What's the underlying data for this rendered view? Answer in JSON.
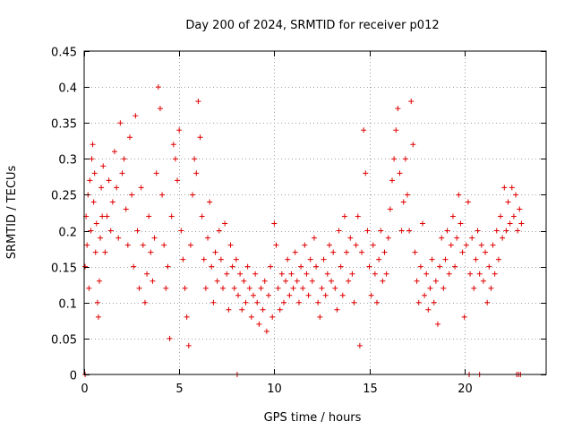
{
  "chart_data": {
    "type": "scatter",
    "title": "Day 200 of 2024, SRMTID for receiver p012",
    "xlabel": "GPS time / hours",
    "ylabel": "SRMTID / TECUs",
    "xlim": [
      0,
      24.3
    ],
    "ylim": [
      0,
      0.45
    ],
    "grid": true,
    "marker": "+",
    "color": "#e00000",
    "x_ticks": [
      0,
      5,
      10,
      15,
      20
    ],
    "x_tick_labels": [
      "0",
      "5",
      "10",
      "15",
      "20"
    ],
    "y_ticks": [
      0,
      0.05,
      0.1,
      0.15,
      0.2,
      0.25,
      0.3,
      0.35,
      0.4,
      0.45
    ],
    "y_tick_labels": [
      "0",
      "0.05",
      "0.1",
      "0.15",
      "0.2",
      "0.25",
      "0.3",
      "0.35",
      "0.4",
      "0.45"
    ],
    "series": [
      {
        "name": "p012",
        "points": [
          [
            0.05,
            0.15
          ],
          [
            0.1,
            0.22
          ],
          [
            0.15,
            0.18
          ],
          [
            0.2,
            0.25
          ],
          [
            0.25,
            0.12
          ],
          [
            0.3,
            0.27
          ],
          [
            0.35,
            0.2
          ],
          [
            0.4,
            0.3
          ],
          [
            0.45,
            0.32
          ],
          [
            0.5,
            0.24
          ],
          [
            0.55,
            0.28
          ],
          [
            0.6,
            0.17
          ],
          [
            0.65,
            0.21
          ],
          [
            0.7,
            0.1
          ],
          [
            0.75,
            0.08
          ],
          [
            0.8,
            0.13
          ],
          [
            0.85,
            0.19
          ],
          [
            0.9,
            0.26
          ],
          [
            0.95,
            0.22
          ],
          [
            1.0,
            0.29
          ],
          [
            1.1,
            0.17
          ],
          [
            1.2,
            0.22
          ],
          [
            1.3,
            0.27
          ],
          [
            1.4,
            0.2
          ],
          [
            1.5,
            0.24
          ],
          [
            1.6,
            0.31
          ],
          [
            1.7,
            0.26
          ],
          [
            1.8,
            0.19
          ],
          [
            1.9,
            0.35
          ],
          [
            2.0,
            0.28
          ],
          [
            2.1,
            0.3
          ],
          [
            2.2,
            0.23
          ],
          [
            2.3,
            0.18
          ],
          [
            2.4,
            0.33
          ],
          [
            2.5,
            0.25
          ],
          [
            2.6,
            0.15
          ],
          [
            2.7,
            0.36
          ],
          [
            2.8,
            0.2
          ],
          [
            2.9,
            0.12
          ],
          [
            3.0,
            0.26
          ],
          [
            3.1,
            0.18
          ],
          [
            3.2,
            0.1
          ],
          [
            3.3,
            0.14
          ],
          [
            3.4,
            0.22
          ],
          [
            3.5,
            0.17
          ],
          [
            3.6,
            0.13
          ],
          [
            3.7,
            0.19
          ],
          [
            3.8,
            0.28
          ],
          [
            3.9,
            0.4
          ],
          [
            4.0,
            0.37
          ],
          [
            4.1,
            0.25
          ],
          [
            4.2,
            0.18
          ],
          [
            4.3,
            0.12
          ],
          [
            4.4,
            0.15
          ],
          [
            4.5,
            0.05
          ],
          [
            4.6,
            0.22
          ],
          [
            4.7,
            0.32
          ],
          [
            4.8,
            0.3
          ],
          [
            4.9,
            0.27
          ],
          [
            5.0,
            0.34
          ],
          [
            5.1,
            0.2
          ],
          [
            5.2,
            0.16
          ],
          [
            5.3,
            0.12
          ],
          [
            5.4,
            0.08
          ],
          [
            5.5,
            0.04
          ],
          [
            5.6,
            0.18
          ],
          [
            5.7,
            0.25
          ],
          [
            5.8,
            0.3
          ],
          [
            5.9,
            0.28
          ],
          [
            6.0,
            0.38
          ],
          [
            6.1,
            0.33
          ],
          [
            6.2,
            0.22
          ],
          [
            6.3,
            0.16
          ],
          [
            6.4,
            0.12
          ],
          [
            6.5,
            0.19
          ],
          [
            6.6,
            0.24
          ],
          [
            6.7,
            0.15
          ],
          [
            6.8,
            0.1
          ],
          [
            6.9,
            0.17
          ],
          [
            7.0,
            0.13
          ],
          [
            7.1,
            0.2
          ],
          [
            7.2,
            0.16
          ],
          [
            7.3,
            0.12
          ],
          [
            7.4,
            0.21
          ],
          [
            7.5,
            0.14
          ],
          [
            7.6,
            0.09
          ],
          [
            7.7,
            0.18
          ],
          [
            7.8,
            0.15
          ],
          [
            7.9,
            0.12
          ],
          [
            8.0,
            0.16
          ],
          [
            8.1,
            0.11
          ],
          [
            8.2,
            0.14
          ],
          [
            8.3,
            0.09
          ],
          [
            8.4,
            0.13
          ],
          [
            8.5,
            0.1
          ],
          [
            8.6,
            0.15
          ],
          [
            8.7,
            0.12
          ],
          [
            8.8,
            0.08
          ],
          [
            8.9,
            0.11
          ],
          [
            9.0,
            0.14
          ],
          [
            9.1,
            0.1
          ],
          [
            9.2,
            0.07
          ],
          [
            9.3,
            0.12
          ],
          [
            9.4,
            0.09
          ],
          [
            9.5,
            0.13
          ],
          [
            9.6,
            0.06
          ],
          [
            9.7,
            0.11
          ],
          [
            9.8,
            0.15
          ],
          [
            9.9,
            0.08
          ],
          [
            10.0,
            0.21
          ],
          [
            10.1,
            0.18
          ],
          [
            10.2,
            0.12
          ],
          [
            10.3,
            0.09
          ],
          [
            10.4,
            0.14
          ],
          [
            10.5,
            0.1
          ],
          [
            10.6,
            0.13
          ],
          [
            10.7,
            0.16
          ],
          [
            10.8,
            0.11
          ],
          [
            10.9,
            0.14
          ],
          [
            11.0,
            0.12
          ],
          [
            11.1,
            0.17
          ],
          [
            11.2,
            0.13
          ],
          [
            11.3,
            0.1
          ],
          [
            11.4,
            0.15
          ],
          [
            11.5,
            0.12
          ],
          [
            11.6,
            0.18
          ],
          [
            11.7,
            0.14
          ],
          [
            11.8,
            0.11
          ],
          [
            11.9,
            0.16
          ],
          [
            12.0,
            0.13
          ],
          [
            12.1,
            0.19
          ],
          [
            12.2,
            0.15
          ],
          [
            12.3,
            0.1
          ],
          [
            12.4,
            0.08
          ],
          [
            12.5,
            0.12
          ],
          [
            12.6,
            0.16
          ],
          [
            12.7,
            0.11
          ],
          [
            12.8,
            0.14
          ],
          [
            12.9,
            0.18
          ],
          [
            13.0,
            0.13
          ],
          [
            13.1,
            0.17
          ],
          [
            13.2,
            0.12
          ],
          [
            13.3,
            0.09
          ],
          [
            13.4,
            0.2
          ],
          [
            13.5,
            0.15
          ],
          [
            13.6,
            0.11
          ],
          [
            13.7,
            0.22
          ],
          [
            13.8,
            0.17
          ],
          [
            13.9,
            0.13
          ],
          [
            14.0,
            0.19
          ],
          [
            14.1,
            0.14
          ],
          [
            14.2,
            0.1
          ],
          [
            14.3,
            0.18
          ],
          [
            14.4,
            0.22
          ],
          [
            14.5,
            0.04
          ],
          [
            14.6,
            0.17
          ],
          [
            14.7,
            0.34
          ],
          [
            14.8,
            0.28
          ],
          [
            14.9,
            0.2
          ],
          [
            15.0,
            0.15
          ],
          [
            15.1,
            0.11
          ],
          [
            15.2,
            0.18
          ],
          [
            15.3,
            0.14
          ],
          [
            15.4,
            0.1
          ],
          [
            15.5,
            0.16
          ],
          [
            15.6,
            0.2
          ],
          [
            15.7,
            0.13
          ],
          [
            15.8,
            0.17
          ],
          [
            15.9,
            0.14
          ],
          [
            16.0,
            0.19
          ],
          [
            16.1,
            0.23
          ],
          [
            16.2,
            0.27
          ],
          [
            16.3,
            0.3
          ],
          [
            16.4,
            0.34
          ],
          [
            16.5,
            0.37
          ],
          [
            16.6,
            0.28
          ],
          [
            16.7,
            0.2
          ],
          [
            16.8,
            0.24
          ],
          [
            16.9,
            0.3
          ],
          [
            17.0,
            0.25
          ],
          [
            17.1,
            0.2
          ],
          [
            17.2,
            0.38
          ],
          [
            17.3,
            0.32
          ],
          [
            17.4,
            0.17
          ],
          [
            17.5,
            0.13
          ],
          [
            17.6,
            0.1
          ],
          [
            17.7,
            0.15
          ],
          [
            17.8,
            0.21
          ],
          [
            17.9,
            0.11
          ],
          [
            18.0,
            0.14
          ],
          [
            18.1,
            0.09
          ],
          [
            18.2,
            0.12
          ],
          [
            18.3,
            0.16
          ],
          [
            18.4,
            0.1
          ],
          [
            18.5,
            0.13
          ],
          [
            18.6,
            0.07
          ],
          [
            18.7,
            0.15
          ],
          [
            18.8,
            0.19
          ],
          [
            18.9,
            0.12
          ],
          [
            19.0,
            0.16
          ],
          [
            19.1,
            0.2
          ],
          [
            19.2,
            0.14
          ],
          [
            19.3,
            0.18
          ],
          [
            19.4,
            0.22
          ],
          [
            19.5,
            0.15
          ],
          [
            19.6,
            0.19
          ],
          [
            19.7,
            0.25
          ],
          [
            19.8,
            0.21
          ],
          [
            19.9,
            0.17
          ],
          [
            20.0,
            0.08
          ],
          [
            20.1,
            0.18
          ],
          [
            20.2,
            0.24
          ],
          [
            20.3,
            0.14
          ],
          [
            20.4,
            0.19
          ],
          [
            20.5,
            0.12
          ],
          [
            20.6,
            0.16
          ],
          [
            20.7,
            0.2
          ],
          [
            20.8,
            0.14
          ],
          [
            20.9,
            0.18
          ],
          [
            21.0,
            0.13
          ],
          [
            21.1,
            0.17
          ],
          [
            21.2,
            0.1
          ],
          [
            21.3,
            0.15
          ],
          [
            21.4,
            0.12
          ],
          [
            21.5,
            0.18
          ],
          [
            21.6,
            0.14
          ],
          [
            21.7,
            0.2
          ],
          [
            21.8,
            0.16
          ],
          [
            21.9,
            0.22
          ],
          [
            22.0,
            0.19
          ],
          [
            22.1,
            0.26
          ],
          [
            22.2,
            0.2
          ],
          [
            22.3,
            0.24
          ],
          [
            22.4,
            0.21
          ],
          [
            22.5,
            0.26
          ],
          [
            22.6,
            0.22
          ],
          [
            22.7,
            0.25
          ],
          [
            22.8,
            0.2
          ],
          [
            22.9,
            0.23
          ],
          [
            23.0,
            0.21
          ],
          [
            0.05,
            0
          ],
          [
            8.05,
            0
          ],
          [
            20.25,
            0
          ],
          [
            20.8,
            0
          ],
          [
            22.75,
            0
          ],
          [
            22.85,
            0
          ],
          [
            22.95,
            0
          ]
        ]
      }
    ]
  }
}
